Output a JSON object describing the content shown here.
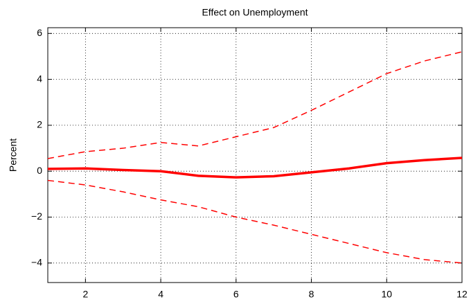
{
  "chart_data": {
    "type": "line",
    "title": "Effect on Unemployment",
    "y_label": "Percent",
    "x": [
      1,
      2,
      3,
      4,
      5,
      6,
      7,
      8,
      9,
      10,
      11,
      12
    ],
    "series": [
      {
        "color": "#ff0000",
        "linestyle": "solid",
        "line_width": 3.5,
        "values": [
          0.1,
          0.12,
          0.05,
          0.0,
          -0.2,
          -0.27,
          -0.22,
          -0.05,
          0.12,
          0.35,
          0.48,
          0.58
        ]
      },
      {
        "color": "#ff0000",
        "linestyle": "dashed",
        "line_width": 1.5,
        "values": [
          0.55,
          0.85,
          1.0,
          1.25,
          1.1,
          1.5,
          1.9,
          2.65,
          3.45,
          4.25,
          4.8,
          5.2
        ]
      },
      {
        "color": "#ff0000",
        "linestyle": "dashed",
        "line_width": 1.5,
        "values": [
          -0.4,
          -0.6,
          -0.9,
          -1.25,
          -1.55,
          -2.0,
          -2.35,
          -2.75,
          -3.15,
          -3.55,
          -3.85,
          -4.0
        ]
      }
    ],
    "xlim": [
      1,
      12
    ],
    "xticks": [
      2,
      4,
      6,
      8,
      10,
      12
    ],
    "ylim": [
      -4.85,
      6.25
    ],
    "yticks": [
      {
        "value": -4,
        "label": "−4"
      },
      {
        "value": -2,
        "label": "−2"
      },
      0,
      2,
      4,
      6
    ],
    "grid": true
  }
}
